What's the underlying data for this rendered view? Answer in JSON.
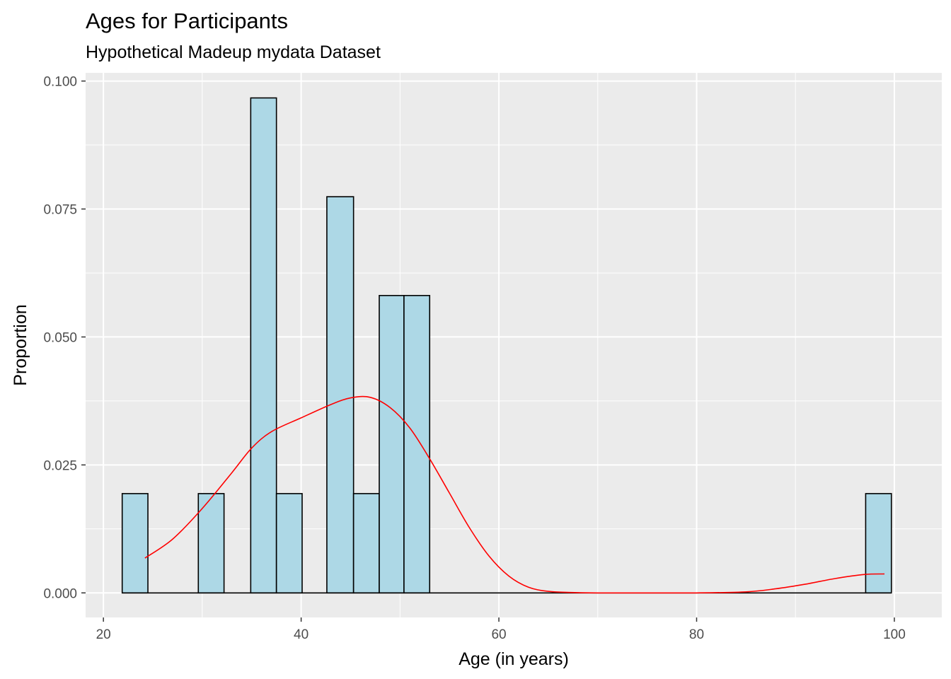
{
  "chart_data": {
    "type": "bar",
    "title": "Ages for Participants",
    "subtitle": "Hypothetical Madeup mydata Dataset",
    "xlabel": "Age (in years)",
    "ylabel": "Proportion",
    "xlim": [
      18.2,
      104.8
    ],
    "ylim": [
      -0.0048,
      0.1016
    ],
    "x_ticks": [
      20,
      40,
      60,
      80,
      100
    ],
    "x_tick_labels": [
      "20",
      "40",
      "60",
      "80",
      "100"
    ],
    "y_ticks": [
      0,
      0.025,
      0.05,
      0.075,
      0.1
    ],
    "y_tick_labels": [
      "0.000",
      "0.025",
      "0.050",
      "0.075",
      "0.100"
    ],
    "grid": true,
    "bar_fill": "#add8e6",
    "bar_outline": "#000000",
    "panel_background": "#ebebeb",
    "bins": [
      {
        "x0": 21.9,
        "x1": 24.5,
        "value": 0.0194
      },
      {
        "x0": 29.6,
        "x1": 32.2,
        "value": 0.0194
      },
      {
        "x0": 34.9,
        "x1": 37.5,
        "value": 0.0967
      },
      {
        "x0": 37.5,
        "x1": 40.1,
        "value": 0.0194
      },
      {
        "x0": 42.6,
        "x1": 45.3,
        "value": 0.0774
      },
      {
        "x0": 45.3,
        "x1": 47.9,
        "value": 0.0194
      },
      {
        "x0": 47.9,
        "x1": 50.4,
        "value": 0.0581
      },
      {
        "x0": 50.4,
        "x1": 53.0,
        "value": 0.0581
      },
      {
        "x0": 97.1,
        "x1": 99.7,
        "value": 0.0194
      }
    ],
    "density": {
      "name": "density",
      "color": "#ff0000",
      "x": [
        24.2,
        27,
        30,
        33,
        35,
        37,
        40,
        43,
        45,
        47,
        49,
        51,
        53,
        55,
        57,
        59,
        61,
        63,
        65,
        67,
        70,
        75,
        80,
        85,
        88,
        91,
        94,
        97,
        99
      ],
      "y": [
        0.0068,
        0.0105,
        0.0165,
        0.0235,
        0.0283,
        0.0315,
        0.0342,
        0.0368,
        0.0381,
        0.0382,
        0.0362,
        0.0322,
        0.0262,
        0.0195,
        0.0128,
        0.0072,
        0.0033,
        0.0011,
        0.0003,
        0.0001,
        0.0,
        0.0,
        0.0,
        0.0002,
        0.0008,
        0.0017,
        0.0028,
        0.0036,
        0.0037
      ]
    }
  }
}
